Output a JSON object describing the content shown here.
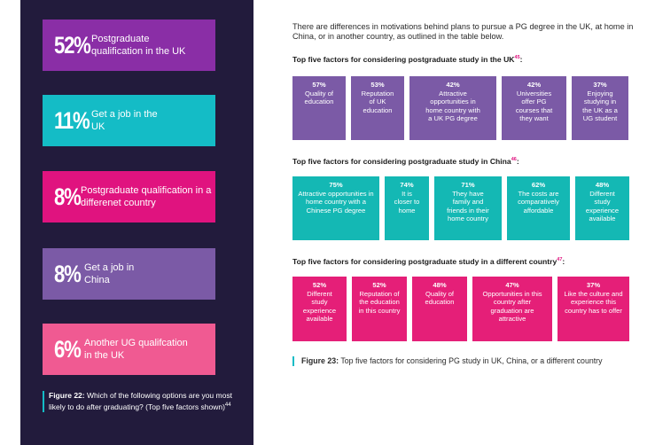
{
  "colors": {
    "panel_bg": "#221b3c",
    "purple": "#7b5aa6",
    "teal": "#14b8b4",
    "pink": "#e51f78",
    "accent_line": "#14bcc6"
  },
  "left": {
    "stats": [
      {
        "pct": "52%",
        "label": "Postgraduate qualification in the UK",
        "color": "#8a2ea6"
      },
      {
        "pct": "11%",
        "label": "Get a job in the UK",
        "color": "#14bcc6"
      },
      {
        "pct": "8%",
        "label": "Postgraduate qualification in a differenet country",
        "color": "#e0137f"
      },
      {
        "pct": "8%",
        "label": "Get a job in China",
        "color": "#7b5aa6"
      },
      {
        "pct": "6%",
        "label": "Another UG qualifcation in the UK",
        "color": "#f05a92"
      }
    ],
    "figure22": {
      "label": "Figure 22:",
      "caption": "Which of the following options are you most likely to do after graduating? (Top five factors shown)",
      "ref": "44"
    }
  },
  "intro": "There are differences in motivations behind plans to pursue a PG degree in the UK, at home in China, or in another country, as outlined in the table below.",
  "sections": {
    "uk": {
      "title": "Top five factors for considering postgraduate study in the UK",
      "ref": "45",
      "items": [
        {
          "pct": "57%",
          "text": "Quality of education"
        },
        {
          "pct": "53%",
          "text": "Reputation of UK education"
        },
        {
          "pct": "42%",
          "text": "Attractive opportunities in home country with a UK PG degree"
        },
        {
          "pct": "42%",
          "text": "Universities offer PG courses that they want"
        },
        {
          "pct": "37%",
          "text": "Enjoying studying in the UK as a UG student"
        }
      ]
    },
    "china": {
      "title": "Top five factors for considering postgraduate study in China",
      "ref": "46",
      "items": [
        {
          "pct": "75%",
          "text": "Attractive opportunities in home country with a Chinese PG degree"
        },
        {
          "pct": "74%",
          "text": "It is closer to home"
        },
        {
          "pct": "71%",
          "text": "They have family and friends in their home country"
        },
        {
          "pct": "62%",
          "text": "The costs are comparatively affordable"
        },
        {
          "pct": "48%",
          "text": "Different study experience available"
        }
      ]
    },
    "other": {
      "title": "Top five factors for considering postgraduate study in a different country",
      "ref": "47",
      "items": [
        {
          "pct": "52%",
          "text": "Different study experience available"
        },
        {
          "pct": "52%",
          "text": "Reputation of the education in this country"
        },
        {
          "pct": "48%",
          "text": "Quality of education"
        },
        {
          "pct": "47%",
          "text": "Opportunities in this country after graduation are attractive"
        },
        {
          "pct": "37%",
          "text": "Like the culture and experience this country has to offer"
        }
      ]
    }
  },
  "figure23": {
    "label": "Figure 23:",
    "caption": "Top five factors for considering PG study in UK, China, or a different country"
  }
}
